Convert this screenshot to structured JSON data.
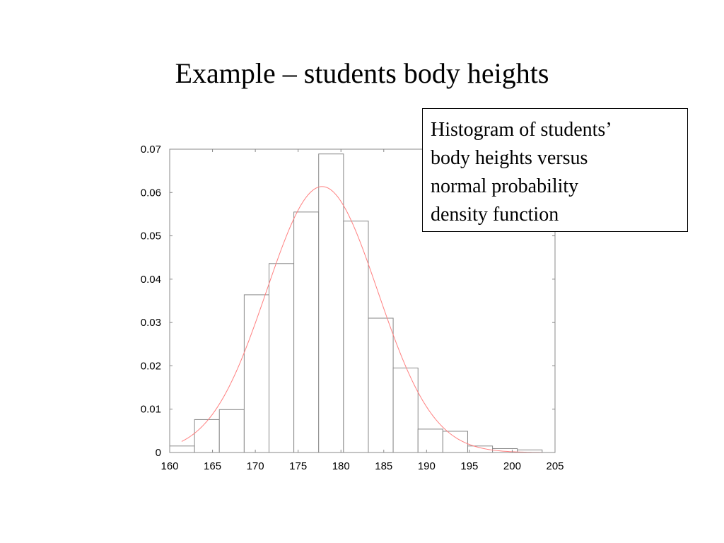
{
  "slide": {
    "title": "Example – students body heights"
  },
  "callout": {
    "lines": [
      "Histogram of students’",
      "body heights versus",
      "normal probability",
      "density function"
    ]
  },
  "colors": {
    "curve": "#ff8080",
    "bar_stroke": "#888888",
    "axis": "#888888"
  },
  "chart_data": {
    "type": "bar",
    "title": "",
    "xlabel": "",
    "ylabel": "",
    "xlim": [
      160,
      205
    ],
    "ylim": [
      0,
      0.07
    ],
    "grid": false,
    "x_ticks": [
      "160",
      "165",
      "170",
      "175",
      "180",
      "185",
      "190",
      "195",
      "200",
      "205"
    ],
    "y_ticks": [
      "0",
      "0.01",
      "0.02",
      "0.03",
      "0.04",
      "0.05",
      "0.06",
      "0.07"
    ],
    "bin_edges": [
      160,
      162.9,
      165.8,
      168.7,
      171.6,
      174.5,
      177.4,
      180.3,
      183.2,
      186.1,
      189,
      191.9,
      194.8,
      197.7,
      200.6,
      203.5
    ],
    "values": [
      0.0015,
      0.0076,
      0.0099,
      0.0364,
      0.0436,
      0.0555,
      0.0689,
      0.0534,
      0.031,
      0.0195,
      0.0054,
      0.0049,
      0.0015,
      0.0009,
      0.0006
    ],
    "series": [
      {
        "type": "line",
        "mean": 177.8,
        "sd": 6.5,
        "x_range": [
          161.4,
          203.5
        ]
      }
    ]
  }
}
